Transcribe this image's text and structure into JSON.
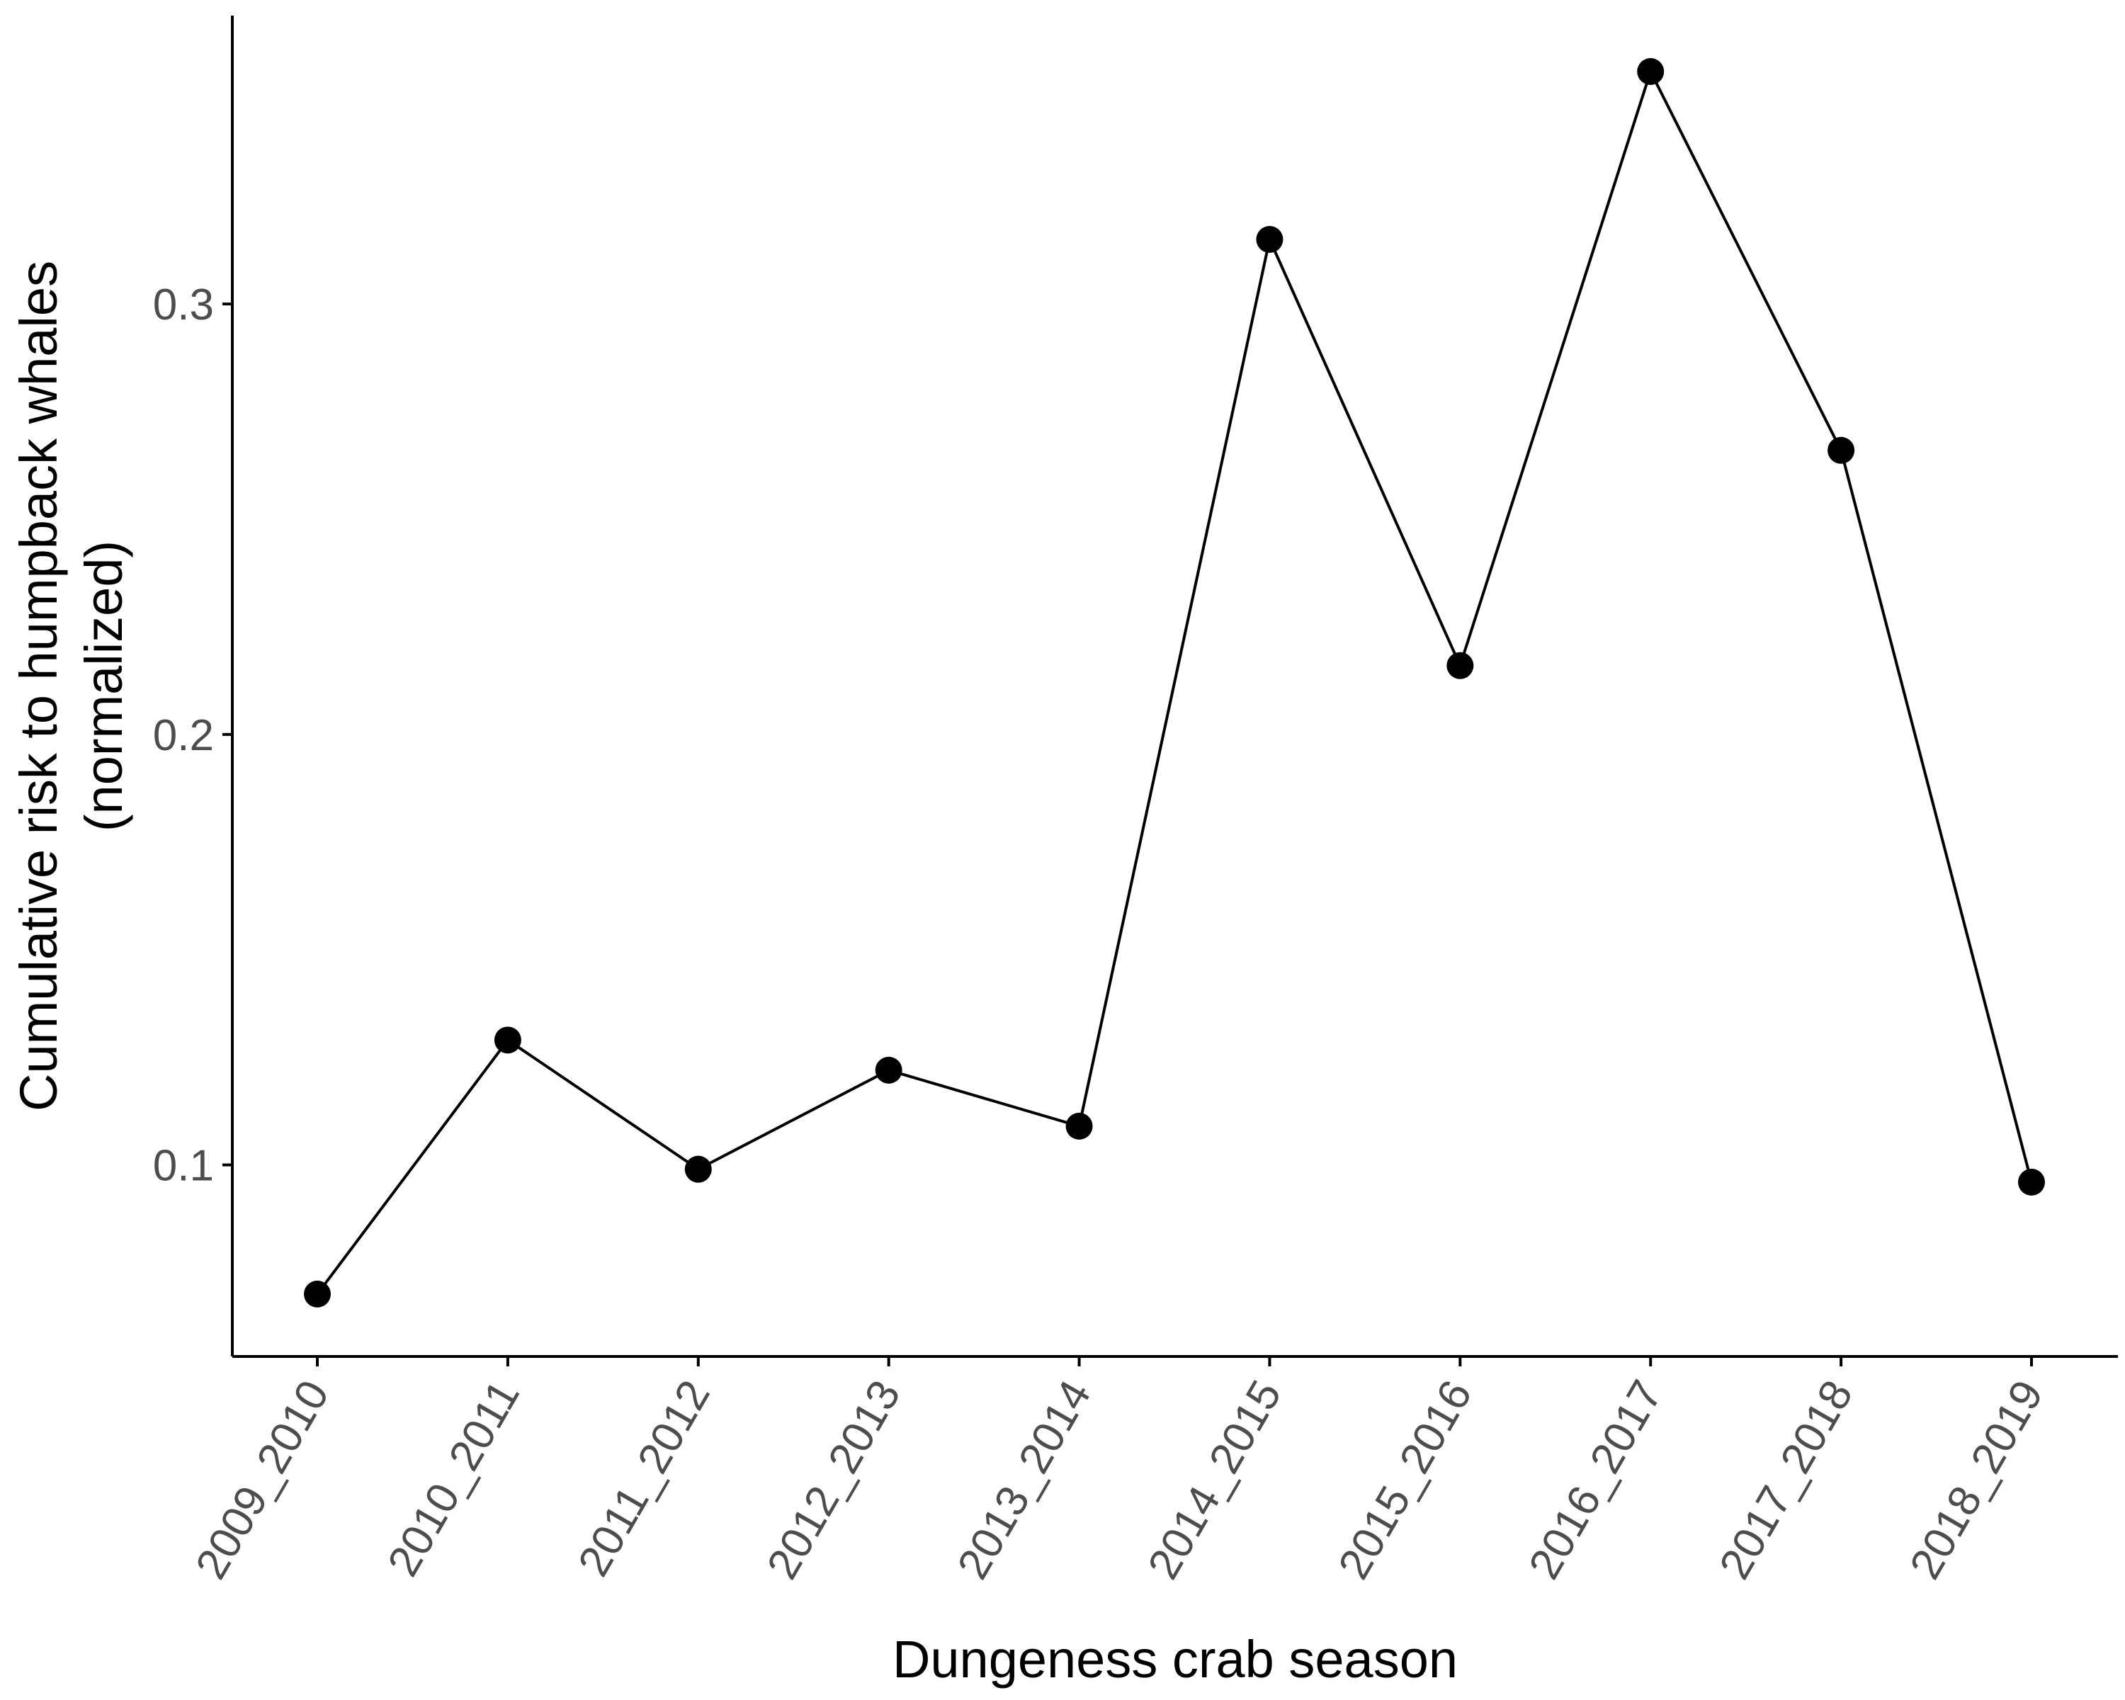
{
  "chart_data": {
    "type": "line",
    "title": "",
    "xlabel": "Dungeness crab season",
    "ylabel_lines": [
      "Cumulative risk to humpback whales",
      "(normalized)"
    ],
    "categories": [
      "2009_2010",
      "2010_2011",
      "2011_2012",
      "2012_2013",
      "2013_2014",
      "2014_2015",
      "2015_2016",
      "2016_2017",
      "2017_2018",
      "2018_2019"
    ],
    "series": [
      {
        "values": [
          0.07,
          0.129,
          0.099,
          0.122,
          0.109,
          0.315,
          0.216,
          0.354,
          0.266,
          0.096
        ]
      }
    ],
    "yticks": [
      0.1,
      0.2,
      0.3
    ],
    "ytick_labels": [
      "0.1",
      "0.2",
      "0.3"
    ],
    "ylim": [
      0.0555,
      0.367
    ],
    "grid": false,
    "legend": "none",
    "colors": {
      "line": "#000000",
      "point": "#000000",
      "axis": "#000000",
      "tick_label": "#4d4d4d"
    }
  }
}
